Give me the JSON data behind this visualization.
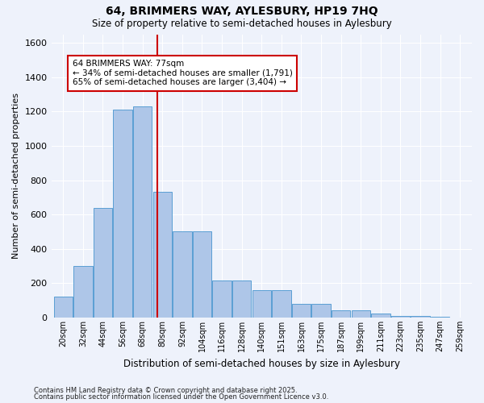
{
  "title1": "64, BRIMMERS WAY, AYLESBURY, HP19 7HQ",
  "title2": "Size of property relative to semi-detached houses in Aylesbury",
  "xlabel": "Distribution of semi-detached houses by size in Aylesbury",
  "ylabel": "Number of semi-detached properties",
  "bins": [
    "20sqm",
    "32sqm",
    "44sqm",
    "56sqm",
    "68sqm",
    "80sqm",
    "92sqm",
    "104sqm",
    "116sqm",
    "128sqm",
    "140sqm",
    "151sqm",
    "163sqm",
    "175sqm",
    "187sqm",
    "199sqm",
    "211sqm",
    "223sqm",
    "235sqm",
    "247sqm",
    "259sqm"
  ],
  "bar_heights": [
    120,
    300,
    640,
    1210,
    1230,
    730,
    500,
    500,
    215,
    215,
    160,
    160,
    80,
    80,
    40,
    40,
    25,
    10,
    10,
    5,
    2
  ],
  "bar_color": "#aec6e8",
  "bar_edge_color": "#5a9fd4",
  "vline_color": "#cc0000",
  "annotation_text": "64 BRIMMERS WAY: 77sqm\n← 34% of semi-detached houses are smaller (1,791)\n65% of semi-detached houses are larger (3,404) →",
  "annotation_box_color": "#ffffff",
  "annotation_box_edge_color": "#cc0000",
  "footnote1": "Contains HM Land Registry data © Crown copyright and database right 2025.",
  "footnote2": "Contains public sector information licensed under the Open Government Licence v3.0.",
  "ylim": [
    0,
    1650
  ],
  "yticks": [
    0,
    200,
    400,
    600,
    800,
    1000,
    1200,
    1400,
    1600
  ],
  "background_color": "#eef2fb",
  "grid_color": "#ffffff"
}
